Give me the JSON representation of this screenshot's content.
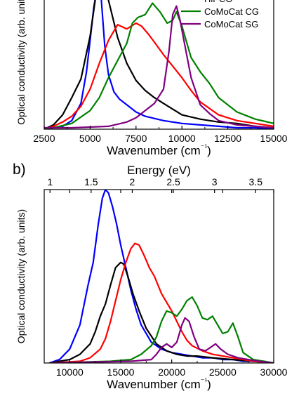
{
  "panel_labels": [
    "b)"
  ],
  "chart_data": [
    {
      "type": "line",
      "xlabel": "Wavenumber (cm⁻¹)",
      "ylabel": "Optical conductivity (arb. units)",
      "xlim": [
        2500,
        15000
      ],
      "ylim": [
        0,
        1.0
      ],
      "x_ticks": [
        2500,
        5000,
        7500,
        10000,
        12500,
        15000
      ],
      "y_ticks_labeled": false,
      "grid": false,
      "legend_position": "top-right",
      "legend": [
        "HiPCO",
        "CoMoCat CG",
        "CoMoCat SG"
      ],
      "series": [
        {
          "name": "",
          "color": "#0000ff",
          "x": [
            2500,
            3500,
            4000,
            4500,
            4800,
            5000,
            5200,
            5400,
            5600,
            5800,
            6000,
            6300,
            6600,
            7000,
            7500,
            8000,
            9000,
            10000,
            11000,
            12000,
            13000,
            14000,
            15000
          ],
          "y": [
            0.0,
            0.02,
            0.06,
            0.18,
            0.4,
            0.62,
            0.85,
            1.0,
            0.92,
            0.58,
            0.38,
            0.26,
            0.21,
            0.17,
            0.12,
            0.09,
            0.06,
            0.04,
            0.03,
            0.02,
            0.01,
            0.01,
            0.0
          ]
        },
        {
          "name": "HiPCO",
          "color": "#000000",
          "x": [
            2500,
            3000,
            3500,
            4000,
            4500,
            5000,
            5300,
            5600,
            6000,
            6500,
            7000,
            7500,
            8000,
            8500,
            9000,
            9500,
            10000,
            11000,
            12000,
            13000,
            14000,
            15000
          ],
          "y": [
            0.0,
            0.03,
            0.1,
            0.22,
            0.35,
            0.65,
            0.92,
            1.0,
            0.9,
            0.64,
            0.46,
            0.34,
            0.27,
            0.22,
            0.18,
            0.14,
            0.1,
            0.07,
            0.05,
            0.04,
            0.02,
            0.01
          ]
        },
        {
          "name": "",
          "color": "#ff0000",
          "x": [
            2500,
            3000,
            3500,
            4000,
            4500,
            5000,
            5500,
            6000,
            6500,
            7000,
            7500,
            7800,
            8200,
            8600,
            9000,
            9500,
            10000,
            10500,
            11000,
            12000,
            13000,
            14000,
            15000
          ],
          "y": [
            0.0,
            0.02,
            0.05,
            0.09,
            0.16,
            0.28,
            0.46,
            0.62,
            0.73,
            0.7,
            0.74,
            0.72,
            0.66,
            0.59,
            0.52,
            0.44,
            0.36,
            0.27,
            0.19,
            0.1,
            0.06,
            0.04,
            0.02
          ]
        },
        {
          "name": "CoMoCat CG",
          "color": "#008000",
          "x": [
            2500,
            3000,
            4000,
            5000,
            5500,
            6000,
            6500,
            7000,
            7300,
            7600,
            8000,
            8400,
            8800,
            9200,
            9500,
            9700,
            10000,
            10500,
            11000,
            11500,
            12000,
            13000,
            14000,
            15000
          ],
          "y": [
            0.0,
            0.01,
            0.04,
            0.13,
            0.22,
            0.36,
            0.48,
            0.6,
            0.74,
            0.78,
            0.8,
            0.88,
            0.82,
            0.74,
            0.76,
            0.82,
            0.72,
            0.5,
            0.4,
            0.32,
            0.22,
            0.12,
            0.07,
            0.04
          ]
        },
        {
          "name": "CoMoCat SG",
          "color": "#800080",
          "x": [
            2500,
            4000,
            6000,
            7000,
            7500,
            8000,
            8500,
            9000,
            9300,
            9500,
            9700,
            9900,
            10200,
            10500,
            11000,
            11500,
            12000,
            13000,
            15000
          ],
          "y": [
            0.01,
            0.01,
            0.02,
            0.05,
            0.08,
            0.13,
            0.18,
            0.28,
            0.55,
            0.8,
            0.86,
            0.76,
            0.56,
            0.36,
            0.17,
            0.11,
            0.06,
            0.03,
            0.01
          ]
        }
      ]
    },
    {
      "type": "line",
      "xlabel": "Wavenumber (cm⁻¹)",
      "ylabel": "Optical conductivity (arb. units)",
      "x2label": "Energy (eV)",
      "xlim": [
        7500,
        30000
      ],
      "ylim": [
        0,
        1.0
      ],
      "x_ticks": [
        10000,
        15000,
        20000,
        25000,
        30000
      ],
      "x2_ticks": [
        1.0,
        1.5,
        2.0,
        2.5,
        3.0,
        3.5
      ],
      "y_ticks_labeled": false,
      "grid": false,
      "series": [
        {
          "name": "",
          "color": "#0000ff",
          "x": [
            8000,
            9000,
            10000,
            11000,
            11800,
            12300,
            12800,
            13200,
            13500,
            13800,
            14200,
            14600,
            15000,
            15500,
            16000,
            16500,
            17000,
            18000,
            19000,
            20000,
            21000,
            22000,
            23000,
            24000,
            25000,
            26000,
            27000,
            28000,
            29000,
            30000
          ],
          "y": [
            0.0,
            0.02,
            0.08,
            0.22,
            0.45,
            0.58,
            0.8,
            0.95,
            1.0,
            0.98,
            0.9,
            0.8,
            0.68,
            0.55,
            0.42,
            0.31,
            0.22,
            0.12,
            0.08,
            0.06,
            0.05,
            0.04,
            0.03,
            0.03,
            0.02,
            0.02,
            0.01,
            0.01,
            0.01,
            0.0
          ]
        },
        {
          "name": "",
          "color": "#000000",
          "x": [
            8000,
            10000,
            11000,
            12000,
            12500,
            13000,
            13500,
            14000,
            14500,
            15000,
            15300,
            15700,
            16200,
            16800,
            17500,
            18500,
            19500,
            20500,
            21500,
            22500,
            24000,
            26000,
            28000,
            30000
          ],
          "y": [
            0.0,
            0.02,
            0.05,
            0.11,
            0.18,
            0.27,
            0.34,
            0.45,
            0.55,
            0.58,
            0.57,
            0.5,
            0.4,
            0.3,
            0.2,
            0.11,
            0.07,
            0.05,
            0.04,
            0.04,
            0.03,
            0.02,
            0.01,
            0.0
          ]
        },
        {
          "name": "",
          "color": "#ff0000",
          "x": [
            8000,
            11000,
            12000,
            13000,
            13500,
            14000,
            14500,
            15000,
            15500,
            16000,
            16400,
            16800,
            17300,
            17800,
            18300,
            19000,
            19500,
            20000,
            20500,
            21000,
            21500,
            22000,
            23000,
            24000,
            25000,
            26000,
            28000,
            30000
          ],
          "y": [
            0.0,
            0.01,
            0.03,
            0.08,
            0.14,
            0.24,
            0.36,
            0.48,
            0.58,
            0.66,
            0.69,
            0.68,
            0.62,
            0.55,
            0.5,
            0.4,
            0.35,
            0.3,
            0.24,
            0.18,
            0.13,
            0.1,
            0.07,
            0.05,
            0.04,
            0.03,
            0.01,
            0.0
          ]
        },
        {
          "name": "",
          "color": "#008000",
          "x": [
            8000,
            14000,
            16000,
            17000,
            18000,
            18500,
            19000,
            19500,
            20000,
            20500,
            21000,
            21500,
            22000,
            22500,
            23000,
            23500,
            24000,
            24500,
            25000,
            25500,
            26000,
            26500,
            27000,
            28000,
            30000
          ],
          "y": [
            0.0,
            0.01,
            0.02,
            0.05,
            0.1,
            0.15,
            0.24,
            0.3,
            0.29,
            0.27,
            0.31,
            0.36,
            0.38,
            0.33,
            0.26,
            0.25,
            0.27,
            0.22,
            0.17,
            0.18,
            0.23,
            0.15,
            0.06,
            0.02,
            0.0
          ]
        },
        {
          "name": "",
          "color": "#800080",
          "x": [
            8000,
            16000,
            18000,
            18500,
            19000,
            19500,
            20000,
            20500,
            21000,
            21300,
            21700,
            22200,
            22700,
            23300,
            23800,
            24300,
            24800,
            25500,
            26500,
            27500,
            28500,
            30000
          ],
          "y": [
            0.0,
            0.01,
            0.02,
            0.05,
            0.09,
            0.11,
            0.09,
            0.12,
            0.22,
            0.26,
            0.24,
            0.15,
            0.08,
            0.07,
            0.09,
            0.11,
            0.08,
            0.05,
            0.03,
            0.02,
            0.01,
            0.0
          ]
        }
      ]
    }
  ]
}
